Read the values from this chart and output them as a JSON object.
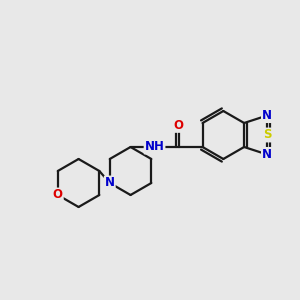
{
  "background_color": "#e8e8e8",
  "bond_color": "#1a1a1a",
  "bond_width": 1.6,
  "atom_colors": {
    "N": "#0000cc",
    "O": "#dd0000",
    "S": "#cccc00",
    "C": "#1a1a1a"
  },
  "font_size": 8.5,
  "xlim": [
    -0.5,
    8.5
  ],
  "ylim": [
    -3.0,
    3.5
  ]
}
